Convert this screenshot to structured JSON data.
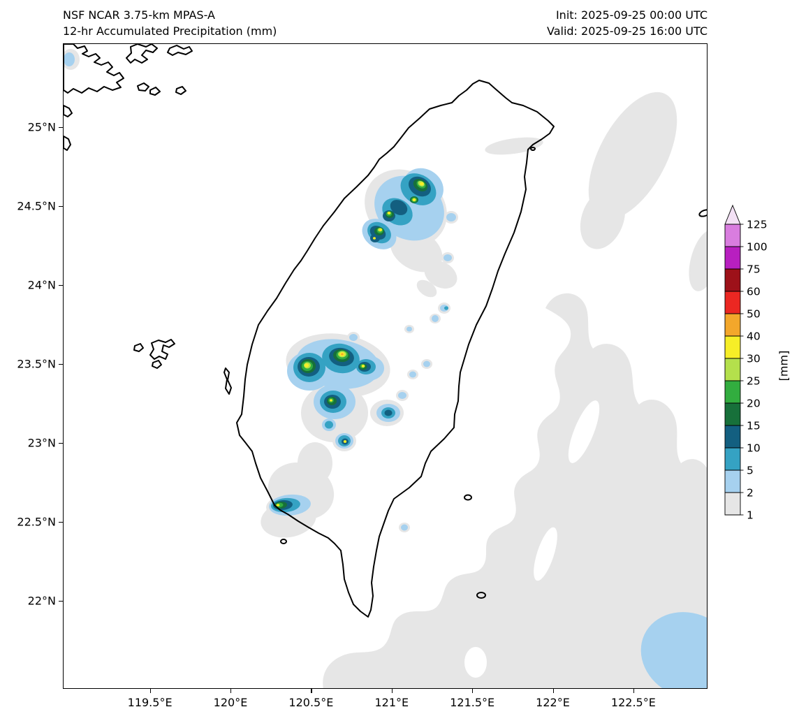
{
  "header": {
    "model": "NSF NCAR 3.75-km MPAS-A",
    "product": "12-hr Accumulated Precipitation (mm)",
    "init": "Init: 2025-09-25 00:00 UTC",
    "valid": "Valid: 2025-09-25 16:00 UTC"
  },
  "axes": {
    "x_ticks": [
      "119.5°E",
      "120°E",
      "120.5°E",
      "121°E",
      "121.5°E",
      "122°E",
      "122.5°E"
    ],
    "y_ticks": [
      "25°N",
      "24.5°N",
      "24°N",
      "23.5°N",
      "23°N",
      "22.5°N",
      "22°N"
    ]
  },
  "colorbar": {
    "units": "[mm]",
    "levels": [
      1,
      2,
      5,
      10,
      15,
      20,
      25,
      30,
      40,
      50,
      60,
      75,
      100,
      125
    ],
    "band_colors": [
      "#e6e6e6",
      "#a6d1ef",
      "#35a2c3",
      "#135f80",
      "#17703a",
      "#32ad3f",
      "#b4e04c",
      "#f6ee27",
      "#f3a72b",
      "#eb2722",
      "#9d1119",
      "#b81fc0",
      "#d97ddf"
    ],
    "over_color": "#f3e1f5",
    "coastline_color": "#000000",
    "background_color": "#ffffff"
  }
}
